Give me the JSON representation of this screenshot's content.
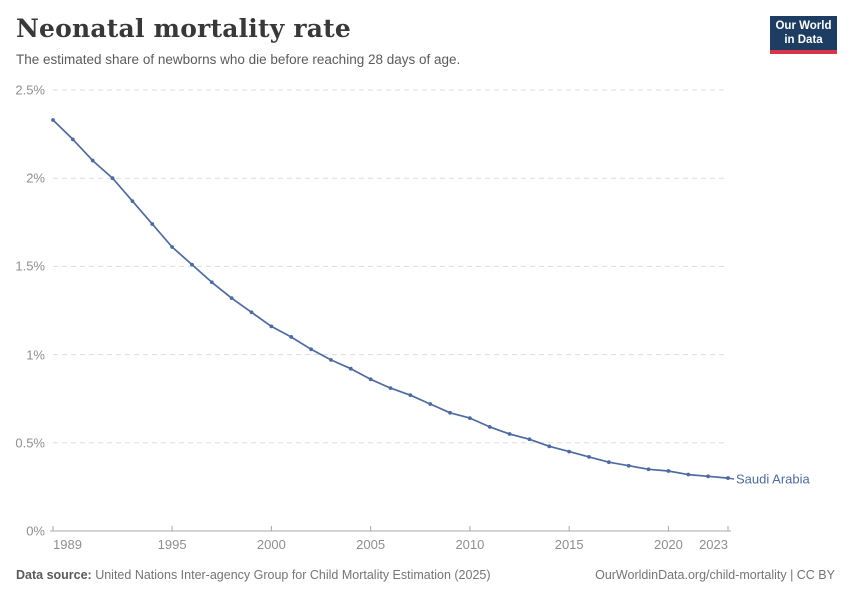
{
  "header": {
    "title": "Neonatal mortality rate",
    "subtitle": "The estimated share of newborns who die before reaching 28 days of age.",
    "logo_line1": "Our World",
    "logo_line2": "in Data"
  },
  "chart_data": {
    "type": "line",
    "title": "Neonatal mortality rate",
    "xlabel": "",
    "ylabel": "",
    "xlim": [
      1989,
      2023
    ],
    "ylim": [
      0,
      2.5
    ],
    "grid": "horizontal-dashed",
    "legend_position": "end-of-line-label",
    "x_ticks": [
      {
        "value": 1989,
        "label": "1989"
      },
      {
        "value": 1995,
        "label": "1995"
      },
      {
        "value": 2000,
        "label": "2000"
      },
      {
        "value": 2005,
        "label": "2005"
      },
      {
        "value": 2010,
        "label": "2010"
      },
      {
        "value": 2015,
        "label": "2015"
      },
      {
        "value": 2020,
        "label": "2020"
      },
      {
        "value": 2023,
        "label": "2023"
      }
    ],
    "y_ticks": [
      {
        "value": 0,
        "label": "0%"
      },
      {
        "value": 0.5,
        "label": "0.5%"
      },
      {
        "value": 1,
        "label": "1%"
      },
      {
        "value": 1.5,
        "label": "1.5%"
      },
      {
        "value": 2,
        "label": "2%"
      },
      {
        "value": 2.5,
        "label": "2.5%"
      }
    ],
    "series": [
      {
        "name": "Saudi Arabia",
        "color": "#4c6ba2",
        "unit": "%",
        "x": [
          1989,
          1990,
          1991,
          1992,
          1993,
          1994,
          1995,
          1996,
          1997,
          1998,
          1999,
          2000,
          2001,
          2002,
          2003,
          2004,
          2005,
          2006,
          2007,
          2008,
          2009,
          2010,
          2011,
          2012,
          2013,
          2014,
          2015,
          2016,
          2017,
          2018,
          2019,
          2020,
          2021,
          2022,
          2023
        ],
        "values": [
          2.33,
          2.22,
          2.1,
          2.0,
          1.87,
          1.74,
          1.61,
          1.51,
          1.41,
          1.32,
          1.24,
          1.16,
          1.1,
          1.03,
          0.97,
          0.92,
          0.86,
          0.81,
          0.77,
          0.72,
          0.67,
          0.64,
          0.59,
          0.55,
          0.52,
          0.48,
          0.45,
          0.42,
          0.39,
          0.37,
          0.35,
          0.34,
          0.32,
          0.31,
          0.3
        ]
      }
    ]
  },
  "footer": {
    "data_source_label": "Data source:",
    "data_source": " United Nations Inter-agency Group for Child Mortality Estimation (2025)",
    "credit": "OurWorldinData.org/child-mortality | CC BY"
  },
  "colors": {
    "line": "#4c6ba2",
    "gridline": "#dddddd",
    "axis": "#a8a8a8",
    "tick_text": "#8f8f8f",
    "logo_bg": "#1d3d63",
    "logo_bar": "#d8354a"
  }
}
